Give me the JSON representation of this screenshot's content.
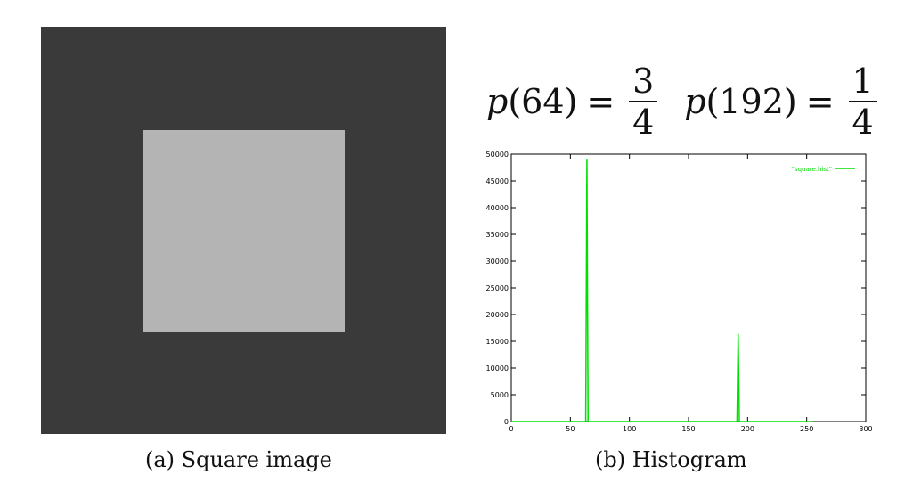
{
  "left_panel": {
    "caption": "(a) Square image",
    "outer_color": "#3a3a3a",
    "inner_color": "#b4b4b4"
  },
  "equation": {
    "term1_fn": "p",
    "term1_arg": "(64)",
    "term1_eq": "=",
    "term1_num": "3",
    "term1_den": "4",
    "term2_fn": "p",
    "term2_arg": "(192)",
    "term2_eq": "=",
    "term2_num": "1",
    "term2_den": "4"
  },
  "right_caption": "(b) Histogram",
  "chart_data": {
    "type": "line",
    "title": "",
    "xlabel": "",
    "ylabel": "",
    "xlim": [
      0,
      300
    ],
    "ylim": [
      0,
      50000
    ],
    "x_ticks": [
      0,
      50,
      100,
      150,
      200,
      250,
      300
    ],
    "y_ticks": [
      0,
      5000,
      10000,
      15000,
      20000,
      25000,
      30000,
      35000,
      40000,
      45000,
      50000
    ],
    "grid": false,
    "legend_position": "top-right",
    "series": [
      {
        "name": "\"square.hist\"",
        "color": "#00e000",
        "x": [
          0,
          63,
          64,
          65,
          191,
          192,
          193,
          255
        ],
        "y": [
          0,
          0,
          49152,
          0,
          0,
          16384,
          0,
          0
        ]
      }
    ]
  }
}
